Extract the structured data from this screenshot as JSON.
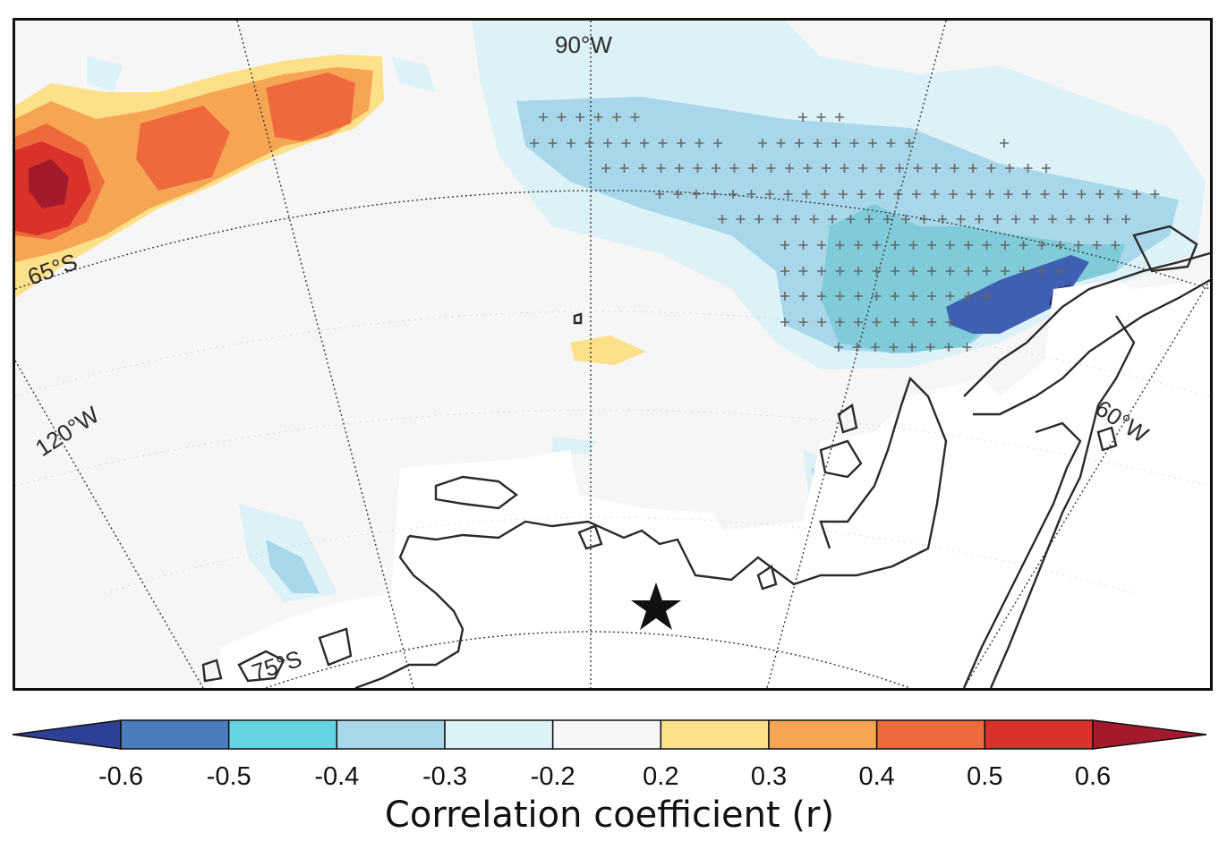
{
  "map": {
    "longitude_labels": [
      "90°W",
      "120°W",
      "60°W"
    ],
    "latitude_labels": [
      "65°S",
      "75°S"
    ],
    "marker": "star-icon"
  },
  "colorbar": {
    "title": "Correlation coefficient (r)",
    "ticks": [
      "-0.6",
      "-0.5",
      "-0.4",
      "-0.3",
      "-0.2",
      "0.2",
      "0.3",
      "0.4",
      "0.5",
      "0.6"
    ],
    "colors": [
      "#2e3f96",
      "#4b7dbd",
      "#63d4e2",
      "#a7d7e8",
      "#ddf1f8",
      "#f6f6f6",
      "#fde08a",
      "#f6a553",
      "#ee6a3d",
      "#d9322b",
      "#a31a2c"
    ],
    "extend": "both"
  },
  "chart_data": {
    "type": "heatmap",
    "title": "",
    "legend": "colorbar bottom",
    "value_range": [
      -0.6,
      0.6
    ],
    "levels": [
      -0.6,
      -0.5,
      -0.4,
      -0.3,
      -0.2,
      0.2,
      0.3,
      0.4,
      0.5,
      0.6
    ],
    "significance_marker": "+",
    "colorbar_label": "Correlation coefficient (r)"
  }
}
